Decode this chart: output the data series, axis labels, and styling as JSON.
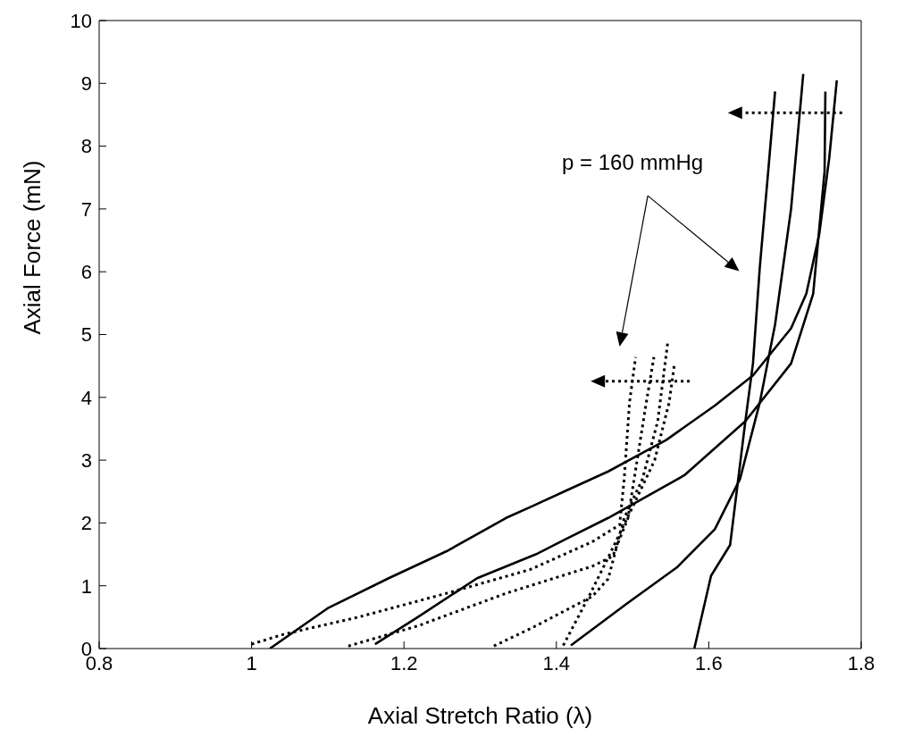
{
  "chart_data": {
    "type": "line",
    "xlabel": "Axial Stretch Ratio (λ)",
    "ylabel": "Axial Force (mN)",
    "xlim": [
      0.8,
      1.8
    ],
    "xticks": [
      0.8,
      1,
      1.2,
      1.4,
      1.6,
      1.8
    ],
    "ylim": [
      0,
      10
    ],
    "yticks": [
      0,
      1,
      2,
      3,
      4,
      5,
      6,
      7,
      8,
      9,
      10
    ],
    "grid": false,
    "marker": "none",
    "annotations": [
      "p = 160 mmHg"
    ],
    "series": [
      {
        "color": "#000000",
        "line_style": "solid",
        "x": [
          1.024,
          1.101,
          1.18,
          1.256,
          1.334,
          1.369,
          1.412,
          1.468,
          1.544,
          1.608,
          1.658,
          1.708,
          1.728,
          1.745,
          1.758,
          1.768
        ],
        "values": [
          0,
          0.65,
          1.12,
          1.55,
          2.08,
          2.27,
          2.51,
          2.82,
          3.32,
          3.87,
          4.35,
          5.1,
          5.65,
          6.6,
          7.8,
          9.05
        ]
      },
      {
        "color": "#000000",
        "line_style": "solid",
        "x": [
          1.162,
          1.218,
          1.296,
          1.373,
          1.412,
          1.468,
          1.568,
          1.648,
          1.708,
          1.737,
          1.752,
          1.753
        ],
        "values": [
          0.07,
          0.5,
          1.12,
          1.5,
          1.74,
          2.08,
          2.76,
          3.62,
          4.54,
          5.65,
          7.6,
          8.87
        ]
      },
      {
        "color": "#000000",
        "line_style": "solid",
        "x": [
          1.419,
          1.494,
          1.558,
          1.608,
          1.641,
          1.667,
          1.687,
          1.708,
          1.724
        ],
        "values": [
          0.05,
          0.73,
          1.29,
          1.9,
          2.7,
          3.92,
          5.16,
          7.0,
          9.15
        ]
      },
      {
        "color": "#000000",
        "line_style": "solid",
        "x": [
          1.581,
          1.603,
          1.628,
          1.648,
          1.658,
          1.667,
          1.678,
          1.687
        ],
        "values": [
          0,
          1.16,
          1.65,
          3.62,
          4.54,
          6.08,
          7.6,
          8.87
        ]
      },
      {
        "color": "#000000",
        "line_style": "dotted",
        "x": [
          1.0,
          1.043,
          1.14,
          1.256,
          1.366,
          1.447,
          1.483,
          1.489,
          1.496,
          1.504
        ],
        "values": [
          0.07,
          0.23,
          0.5,
          0.88,
          1.26,
          1.7,
          1.97,
          2.7,
          3.92,
          4.64
        ]
      },
      {
        "color": "#000000",
        "line_style": "dotted",
        "x": [
          1.127,
          1.218,
          1.334,
          1.447,
          1.474,
          1.494,
          1.518,
          1.528
        ],
        "values": [
          0.04,
          0.36,
          0.88,
          1.31,
          1.47,
          2.08,
          3.92,
          4.64
        ]
      },
      {
        "color": "#000000",
        "line_style": "dotted",
        "x": [
          1.318,
          1.373,
          1.447,
          1.468,
          1.489,
          1.513,
          1.533,
          1.546
        ],
        "values": [
          0.04,
          0.36,
          0.83,
          1.11,
          2.08,
          2.7,
          3.62,
          4.86
        ]
      },
      {
        "color": "#000000",
        "line_style": "dotted",
        "x": [
          1.409,
          1.444,
          1.474,
          1.503,
          1.529,
          1.548,
          1.555
        ],
        "values": [
          0.05,
          0.86,
          1.6,
          2.33,
          3.0,
          3.92,
          4.54
        ]
      }
    ]
  }
}
